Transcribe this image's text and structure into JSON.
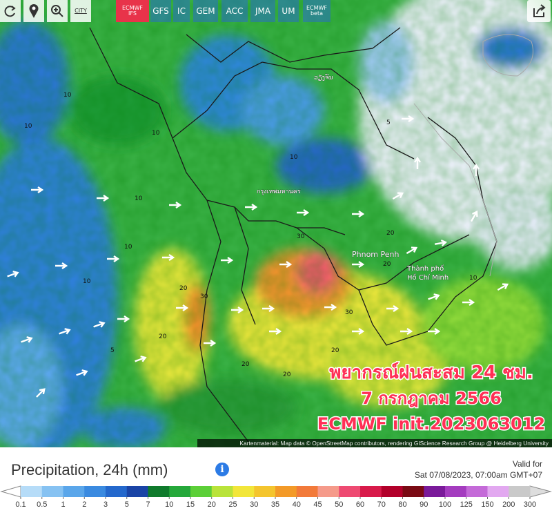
{
  "toolbar": {
    "city_button": "CITY",
    "models": [
      {
        "lines": [
          "ECMWF",
          "IFS"
        ],
        "active": true
      },
      {
        "lines": [
          "GFS"
        ]
      },
      {
        "lines": [
          "IC"
        ]
      },
      {
        "lines": [
          "GEM"
        ]
      },
      {
        "lines": [
          "ACC"
        ]
      },
      {
        "lines": [
          "JMA"
        ]
      },
      {
        "lines": [
          "UM"
        ]
      },
      {
        "lines": [
          "ECMWF",
          "beta"
        ]
      }
    ]
  },
  "map": {
    "places": [
      "ວຽງຈັນ",
      "กรุงเทพมหานคร",
      "Phnom Penh",
      "Thành phố",
      "Hồ Chí Minh"
    ],
    "contour_labels": [
      "10",
      "10",
      "10",
      "10",
      "10",
      "10",
      "5",
      "10",
      "20",
      "30",
      "20",
      "30",
      "20",
      "30",
      "20",
      "20",
      "20",
      "10",
      "5",
      "20"
    ],
    "overlay": [
      "พยากรณ์ฝนสะสม 24 ชม.",
      "7 กรกฎาคม 2566",
      "ECMWF init.2023063012"
    ],
    "attribution": "Kartenmaterial: Map data © OpenStreetMap contributors, rendering GIScience Research Group @ Heidelberg University"
  },
  "footer": {
    "title": "Precipitation, 24h (mm)",
    "valid_label": "Valid for",
    "valid_time": "Sat 07/08/2023, 07:00am GMT+07"
  },
  "legend": {
    "ticks": [
      0.1,
      0.5,
      1,
      2,
      3,
      5,
      7,
      10,
      15,
      20,
      25,
      30,
      35,
      40,
      45,
      50,
      60,
      70,
      80,
      90,
      100,
      125,
      150,
      200,
      300
    ],
    "colors": [
      "#b6dcf8",
      "#86c2f2",
      "#5aa6ea",
      "#3a8ae0",
      "#2468cc",
      "#1a44a6",
      "#0f7a2c",
      "#25a83a",
      "#5ccf38",
      "#b9e33a",
      "#f2e63a",
      "#f4c52e",
      "#f39a28",
      "#f27a3a",
      "#f59a8a",
      "#ee4a72",
      "#d81a4a",
      "#b2002a",
      "#7a0a14",
      "#7a1a9a",
      "#a43cbf",
      "#c46ad8",
      "#e2a8f0",
      "#c9c9c9"
    ]
  }
}
